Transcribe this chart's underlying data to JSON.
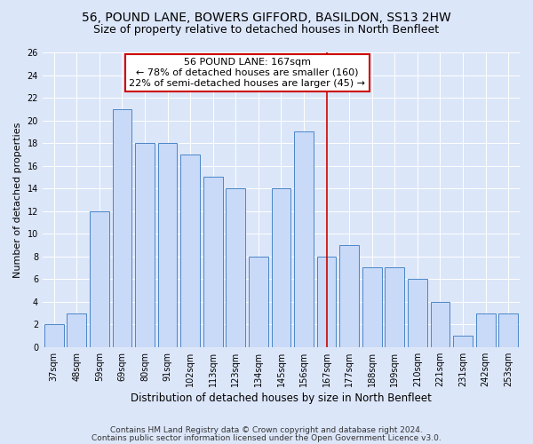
{
  "title1": "56, POUND LANE, BOWERS GIFFORD, BASILDON, SS13 2HW",
  "title2": "Size of property relative to detached houses in North Benfleet",
  "xlabel": "Distribution of detached houses by size in North Benfleet",
  "ylabel": "Number of detached properties",
  "categories": [
    "37sqm",
    "48sqm",
    "59sqm",
    "69sqm",
    "80sqm",
    "91sqm",
    "102sqm",
    "113sqm",
    "123sqm",
    "134sqm",
    "145sqm",
    "156sqm",
    "167sqm",
    "177sqm",
    "188sqm",
    "199sqm",
    "210sqm",
    "221sqm",
    "231sqm",
    "242sqm",
    "253sqm"
  ],
  "values": [
    2,
    3,
    12,
    21,
    18,
    18,
    17,
    15,
    14,
    8,
    14,
    19,
    8,
    9,
    7,
    7,
    6,
    4,
    1,
    3,
    3
  ],
  "bar_color": "#c9daf8",
  "bar_edge_color": "#4a86c8",
  "highlight_index": 12,
  "highlight_line_color": "#cc0000",
  "annotation_line1": "56 POUND LANE: 167sqm",
  "annotation_line2": "← 78% of detached houses are smaller (160)",
  "annotation_line3": "22% of semi-detached houses are larger (45) →",
  "annotation_box_color": "#ffffff",
  "annotation_box_edge_color": "#cc0000",
  "ylim": [
    0,
    26
  ],
  "yticks": [
    0,
    2,
    4,
    6,
    8,
    10,
    12,
    14,
    16,
    18,
    20,
    22,
    24,
    26
  ],
  "footer1": "Contains HM Land Registry data © Crown copyright and database right 2024.",
  "footer2": "Contains public sector information licensed under the Open Government Licence v3.0.",
  "bg_color": "#dce6f9",
  "fig_bg_color": "#dce6f9",
  "title1_fontsize": 10,
  "title2_fontsize": 9,
  "xlabel_fontsize": 8.5,
  "ylabel_fontsize": 8,
  "tick_fontsize": 7,
  "annotation_fontsize": 8,
  "footer_fontsize": 6.5
}
